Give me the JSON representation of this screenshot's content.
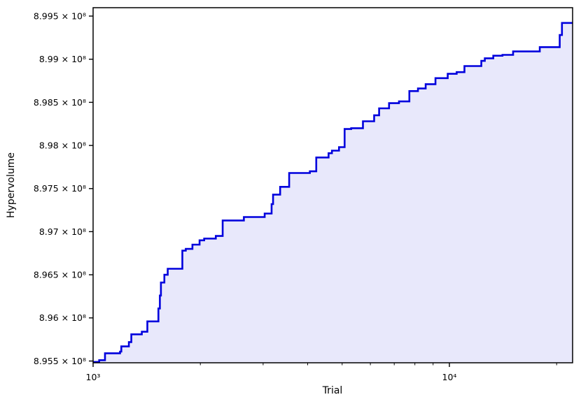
{
  "chart_data": {
    "type": "line",
    "style": "step-post-with-area-fill",
    "title": "",
    "xlabel": "Trial",
    "ylabel": "Hypervolume",
    "x_scale": "log",
    "y_scale": "linear",
    "xlim": [
      1000,
      22170
    ],
    "ylim": [
      895480000,
      899597000
    ],
    "grid": false,
    "legend": "none",
    "frame": "full-box",
    "line_color": "#0000dd",
    "fill_color": "#e8e8fb",
    "ylabel_color": "#0000ff",
    "axis_color": "#000000",
    "x_ticks": [
      {
        "value": 1000,
        "label": "10³"
      },
      {
        "value": 10000,
        "label": "10⁴"
      }
    ],
    "x_minor_ticks": [
      2000,
      3000,
      4000,
      5000,
      6000,
      7000,
      8000,
      9000,
      20000
    ],
    "y_ticks": [
      {
        "value": 895500000,
        "label": "8.955 × 10⁸"
      },
      {
        "value": 896000000,
        "label": "8.96 × 10⁸"
      },
      {
        "value": 896500000,
        "label": "8.965 × 10⁸"
      },
      {
        "value": 897000000,
        "label": "8.97 × 10⁸"
      },
      {
        "value": 897500000,
        "label": "8.975 × 10⁸"
      },
      {
        "value": 898000000,
        "label": "8.98 × 10⁸"
      },
      {
        "value": 898500000,
        "label": "8.985 × 10⁸"
      },
      {
        "value": 899000000,
        "label": "8.99 × 10⁸"
      },
      {
        "value": 899500000,
        "label": "8.995 × 10⁸"
      }
    ],
    "series": [
      {
        "name": "Hypervolume",
        "x": [
          1000,
          1040,
          1080,
          1190,
          1200,
          1260,
          1280,
          1370,
          1420,
          1525,
          1540,
          1550,
          1585,
          1620,
          1780,
          1820,
          1900,
          1990,
          2050,
          2210,
          2310,
          2650,
          3030,
          3170,
          3200,
          3350,
          3550,
          4060,
          4230,
          4580,
          4680,
          4900,
          5080,
          5300,
          5720,
          6150,
          6350,
          6770,
          7220,
          7720,
          8160,
          8580,
          9140,
          9890,
          10480,
          11020,
          12290,
          12570,
          13280,
          14090,
          15090,
          17930,
          20400,
          20700,
          22170
        ],
        "y": [
          895490000,
          895510000,
          895590000,
          895610000,
          895670000,
          895720000,
          895810000,
          895840000,
          895960000,
          896110000,
          896260000,
          896410000,
          896500000,
          896570000,
          896780000,
          896800000,
          896850000,
          896900000,
          896920000,
          896950000,
          897130000,
          897170000,
          897210000,
          897320000,
          897430000,
          897520000,
          897680000,
          897700000,
          897860000,
          897910000,
          897940000,
          897980000,
          898190000,
          898200000,
          898280000,
          898350000,
          898430000,
          898490000,
          898510000,
          898630000,
          898660000,
          898710000,
          898780000,
          898830000,
          898850000,
          898920000,
          898980000,
          899010000,
          899040000,
          899050000,
          899090000,
          899140000,
          899280000,
          899420000,
          899420000
        ]
      }
    ]
  }
}
